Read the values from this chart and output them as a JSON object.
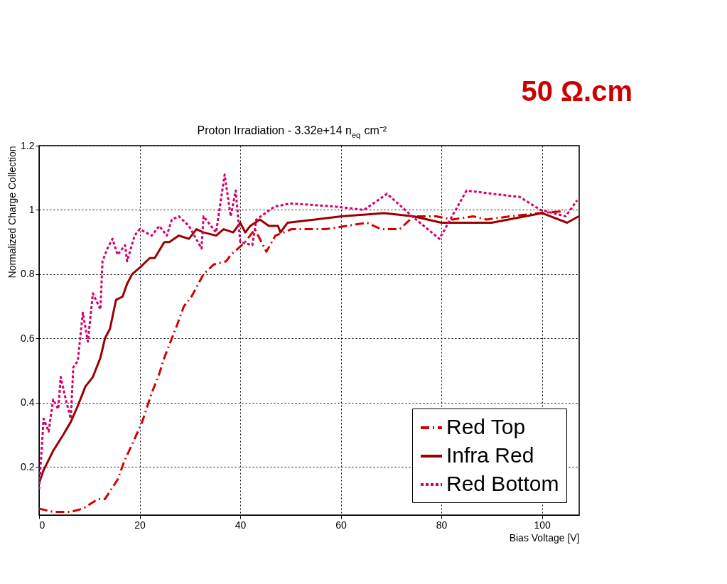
{
  "chart_data": {
    "type": "line",
    "title": "Proton Irradiation - 3.32e+14 n$_{eq}$ cm⁻²",
    "xlabel": "Bias Voltage [V]",
    "ylabel": "Normalized Charge Collection",
    "annotations": [
      "50 Ω.cm"
    ],
    "xlim": [
      0,
      107.4
    ],
    "ylim": [
      0.05,
      1.2
    ],
    "xticks": [
      0,
      20,
      40,
      60,
      80,
      100
    ],
    "yticks": [
      0.2,
      0.4,
      0.6,
      0.8,
      {
        "value": 1,
        "label": "1"
      },
      1.2
    ],
    "grid": true,
    "legend": "bottom right",
    "series": [
      {
        "name": "Red Top",
        "color": "#d40000",
        "line_style": "dashed",
        "x": [
          0,
          2.8,
          6.3,
          8.7,
          11.7,
          13.1,
          15.6,
          17,
          18.5,
          20.5,
          22.4,
          23.9,
          24.9,
          26.4,
          27.4,
          28.8,
          30.3,
          32.7,
          34.7,
          37.2,
          38.1,
          39.6,
          41,
          42.9,
          45.2,
          47,
          50.2,
          53.4,
          57,
          61.1,
          65.2,
          68,
          71.7,
          74.5,
          79,
          82.2,
          86.3,
          89,
          93.6,
          99.5,
          104.5
        ],
        "values": [
          0.07,
          0.06,
          0.06,
          0.07,
          0.1,
          0.1,
          0.16,
          0.22,
          0.27,
          0.34,
          0.43,
          0.49,
          0.54,
          0.6,
          0.64,
          0.7,
          0.73,
          0.8,
          0.83,
          0.84,
          0.86,
          0.88,
          0.9,
          0.94,
          0.87,
          0.92,
          0.94,
          0.94,
          0.94,
          0.95,
          0.96,
          0.94,
          0.94,
          0.98,
          0.98,
          0.97,
          0.98,
          0.97,
          0.98,
          0.99,
          0.996
        ]
      },
      {
        "name": "Infra Red",
        "color": "#990000",
        "line_style": "solid",
        "x": [
          0,
          0.9,
          2.8,
          4.8,
          6.3,
          7.7,
          9.2,
          10.7,
          12.2,
          13.1,
          14.1,
          15.3,
          16.6,
          17.5,
          18.5,
          20,
          22,
          23,
          24.9,
          25.9,
          27.8,
          29.8,
          31.3,
          32.7,
          35.2,
          36.7,
          38.6,
          40,
          41,
          42,
          43.9,
          45.7,
          47.5,
          48,
          49.4,
          54.9,
          60.1,
          68.6,
          74.5,
          80,
          84.5,
          90,
          100,
          105,
          107.3
        ],
        "values": [
          0.15,
          0.19,
          0.25,
          0.3,
          0.34,
          0.39,
          0.45,
          0.48,
          0.54,
          0.6,
          0.63,
          0.72,
          0.73,
          0.77,
          0.8,
          0.82,
          0.85,
          0.85,
          0.9,
          0.9,
          0.92,
          0.91,
          0.94,
          0.93,
          0.92,
          0.94,
          0.93,
          0.96,
          0.93,
          0.95,
          0.97,
          0.95,
          0.95,
          0.93,
          0.96,
          0.97,
          0.98,
          0.99,
          0.98,
          0.96,
          0.96,
          0.96,
          0.99,
          0.96,
          0.98
        ]
      },
      {
        "name": "Red Bottom",
        "color": "#d4006e",
        "line_style": "dotted",
        "x": [
          0,
          0.9,
          1.9,
          2.8,
          3.8,
          4.3,
          5.3,
          6.3,
          6.8,
          7.7,
          8.7,
          9.7,
          10.7,
          12.2,
          12.6,
          13.6,
          14.6,
          15.6,
          17.1,
          17.5,
          19,
          20,
          22.4,
          23.9,
          25.4,
          26.4,
          27.8,
          29.8,
          32.3,
          32.7,
          35.2,
          36.9,
          38.1,
          39.1,
          40,
          42.4,
          43.2,
          46.8,
          50,
          59.1,
          64.6,
          69.2,
          74.2,
          79.6,
          85,
          95.6,
          99.7,
          104.7,
          107
        ],
        "values": [
          0.13,
          0.35,
          0.31,
          0.41,
          0.38,
          0.48,
          0.41,
          0.35,
          0.51,
          0.53,
          0.68,
          0.59,
          0.74,
          0.69,
          0.84,
          0.88,
          0.91,
          0.86,
          0.89,
          0.84,
          0.92,
          0.94,
          0.92,
          0.95,
          0.92,
          0.97,
          0.98,
          0.95,
          0.88,
          0.98,
          0.93,
          1.11,
          0.98,
          1.06,
          0.9,
          0.89,
          0.97,
          1.01,
          1.02,
          1.01,
          1.0,
          1.05,
          0.98,
          0.91,
          1.06,
          1.04,
          1.0,
          0.98,
          1.03
        ]
      }
    ]
  }
}
